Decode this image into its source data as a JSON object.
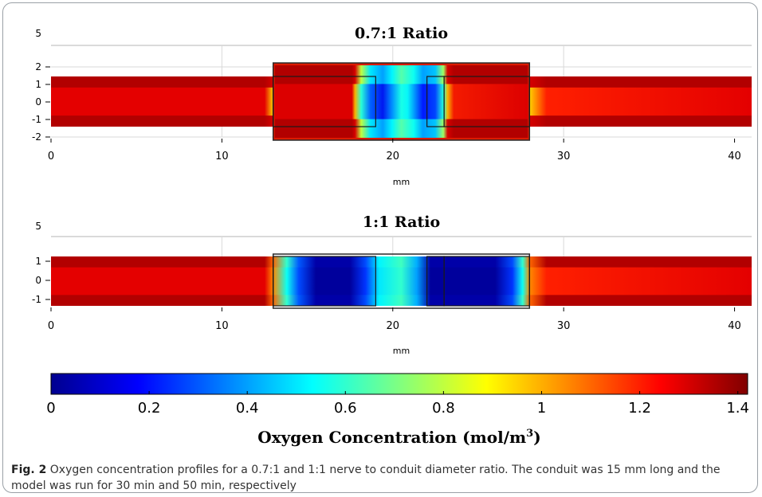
{
  "chart_data": [
    {
      "type": "heatmap",
      "title": "0.7:1 Ratio",
      "xlabel": "mm",
      "xlim": [
        0,
        41
      ],
      "ylim": [
        -2,
        2
      ],
      "x_ticks": [
        "0",
        "10",
        "20",
        "30",
        "40"
      ],
      "y_ticks": [
        "2",
        "1",
        "0",
        "-1",
        "-2"
      ],
      "extra_y_label": "5",
      "nerve_diameter_ratio": "0.7:1",
      "conduit_range_mm": [
        13,
        28
      ],
      "nerve_half_height_mm": 1.5,
      "conduit_half_height_mm": 2.2,
      "segments_mm": [
        [
          13,
          19
        ],
        [
          22,
          23
        ],
        [
          23,
          28
        ]
      ],
      "concentration_profile": {
        "x_mm": [
          0,
          12.5,
          13,
          14,
          15.5,
          17.5,
          19,
          20.5,
          21.5,
          22.5,
          24,
          26,
          27.3,
          28,
          29,
          41
        ],
        "center_mol_m3": [
          1.28,
          1.28,
          0.95,
          0.55,
          0.28,
          0.15,
          0.35,
          0.55,
          0.52,
          0.38,
          0.18,
          0.24,
          0.55,
          0.95,
          1.2,
          1.28
        ],
        "edge_mol_m3": [
          1.35,
          1.35,
          1.3,
          0.8,
          0.5,
          0.4,
          0.52,
          0.65,
          0.6,
          0.55,
          0.4,
          0.45,
          0.75,
          1.3,
          1.35,
          1.35
        ]
      }
    },
    {
      "type": "heatmap",
      "title": "1:1 Ratio",
      "xlabel": "mm",
      "xlim": [
        0,
        41
      ],
      "ylim": [
        -1,
        1
      ],
      "x_ticks": [
        "0",
        "10",
        "20",
        "30",
        "40"
      ],
      "y_ticks": [
        "1",
        "0",
        "-1"
      ],
      "extra_y_label": "5",
      "nerve_diameter_ratio": "1:1",
      "conduit_range_mm": [
        13,
        28
      ],
      "nerve_half_height_mm": 1,
      "conduit_half_height_mm": 1,
      "segments_mm": [
        [
          13,
          19
        ],
        [
          22,
          23
        ],
        [
          23,
          28
        ]
      ],
      "concentration_profile": {
        "x_mm": [
          0,
          12.5,
          13,
          13.8,
          14.5,
          15.5,
          17.5,
          18.4,
          19.2,
          20.5,
          21.4,
          22.2,
          24,
          26,
          27,
          27.6,
          28,
          29,
          41
        ],
        "center_mol_m3": [
          1.28,
          1.28,
          1.05,
          0.55,
          0.28,
          0.02,
          0.02,
          0.25,
          0.5,
          0.6,
          0.4,
          0.02,
          0.02,
          0.02,
          0.25,
          0.55,
          1.05,
          1.2,
          1.28
        ],
        "edge_mol_m3": [
          1.35,
          1.35,
          1.1,
          0.6,
          0.3,
          0.04,
          0.04,
          0.28,
          0.52,
          0.62,
          0.42,
          0.04,
          0.04,
          0.04,
          0.28,
          0.6,
          1.1,
          1.35,
          1.35
        ]
      }
    }
  ],
  "colorbar": {
    "min": 0,
    "max": 1.42,
    "ticks": [
      "0",
      "0.2",
      "0.4",
      "0.6",
      "0.8",
      "1",
      "1.2",
      "1.4"
    ],
    "label": "Oxygen Concentration (mol/m",
    "label_sup": "3",
    "label_end": ")",
    "colormap": [
      "#00008f",
      "#0000ff",
      "#0080ff",
      "#00ffff",
      "#80ff80",
      "#ffff00",
      "#ff8000",
      "#ff0000",
      "#800000"
    ]
  },
  "caption": {
    "label": "Fig. 2",
    "text": "Oxygen concentration profiles for a 0.7:1 and 1:1 nerve to conduit diameter ratio. The conduit was 15 mm long and the model was run for 30 min and 50 min, respectively"
  }
}
